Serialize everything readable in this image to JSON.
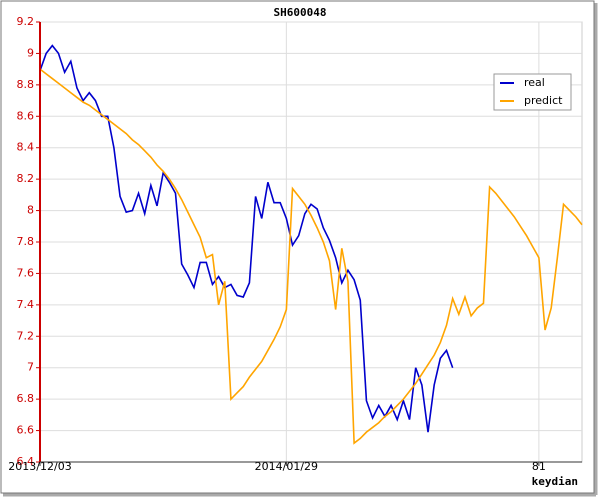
{
  "chart_data": {
    "type": "line",
    "title": "SH600048",
    "xlabel": "keydian",
    "x": [
      0,
      1,
      2,
      3,
      4,
      5,
      6,
      7,
      8,
      9,
      10,
      11,
      12,
      13,
      14,
      15,
      16,
      17,
      18,
      19,
      20,
      21,
      22,
      23,
      24,
      25,
      26,
      27,
      28,
      29,
      30,
      31,
      32,
      33,
      34,
      35,
      36,
      37,
      38,
      39,
      40,
      41,
      42,
      43,
      44,
      45,
      46,
      47,
      48,
      49,
      50,
      51,
      52,
      53,
      54,
      55,
      56,
      57,
      58,
      59,
      60,
      61,
      62,
      63,
      64,
      65,
      66,
      67,
      68,
      69,
      70,
      71,
      72,
      73,
      74,
      75,
      76,
      77,
      78,
      79,
      80,
      81,
      82,
      83,
      84,
      85,
      86,
      87,
      88
    ],
    "series": [
      {
        "name": "real",
        "color": "#0000cc",
        "values": [
          8.89,
          9.0,
          9.05,
          9.0,
          8.88,
          8.95,
          8.78,
          8.7,
          8.75,
          8.7,
          8.6,
          8.6,
          8.4,
          8.09,
          7.99,
          8.0,
          8.11,
          7.98,
          8.16,
          8.03,
          8.24,
          8.18,
          8.11,
          7.66,
          7.59,
          7.51,
          7.67,
          7.67,
          7.53,
          7.58,
          7.51,
          7.53,
          7.46,
          7.45,
          7.54,
          8.09,
          7.95,
          8.18,
          8.05,
          8.05,
          7.95,
          7.78,
          7.84,
          7.98,
          8.04,
          8.01,
          7.89,
          7.81,
          7.7,
          7.54,
          7.62,
          7.56,
          7.43,
          6.79,
          6.68,
          6.76,
          6.69,
          6.76,
          6.67,
          6.79,
          6.67,
          7.0,
          6.89,
          6.59,
          6.89,
          7.06,
          7.11,
          7.0,
          null,
          null,
          null,
          null,
          null,
          null,
          null,
          null,
          null,
          null,
          null,
          null,
          null,
          null,
          null,
          null,
          null,
          null,
          null,
          null,
          null
        ]
      },
      {
        "name": "predict",
        "color": "#ffa500",
        "values": [
          8.9,
          8.87,
          8.84,
          8.81,
          8.78,
          8.75,
          8.72,
          8.69,
          8.67,
          8.64,
          8.61,
          8.58,
          8.55,
          8.52,
          8.49,
          8.45,
          8.42,
          8.38,
          8.34,
          8.29,
          8.25,
          8.2,
          8.14,
          8.07,
          7.99,
          7.91,
          7.83,
          7.7,
          7.72,
          7.4,
          7.55,
          6.8,
          6.84,
          6.88,
          6.94,
          6.99,
          7.04,
          7.11,
          7.18,
          7.26,
          7.37,
          8.14,
          8.09,
          8.04,
          7.97,
          7.89,
          7.8,
          7.68,
          7.37,
          7.76,
          7.55,
          6.52,
          6.55,
          6.59,
          6.62,
          6.65,
          6.69,
          6.72,
          6.76,
          6.8,
          6.85,
          6.9,
          6.96,
          7.02,
          7.08,
          7.16,
          7.27,
          7.44,
          7.34,
          7.45,
          7.33,
          7.38,
          7.41,
          8.15,
          8.11,
          8.06,
          8.01,
          7.96,
          7.9,
          7.84,
          7.77,
          7.7,
          7.24,
          7.38,
          7.7,
          8.04,
          8.0,
          7.96,
          7.91
        ]
      }
    ],
    "xlim": [
      0,
      88
    ],
    "xticks": [
      {
        "value": 0,
        "label": "2013/12/03"
      },
      {
        "value": 40,
        "label": "2014/01/29"
      },
      81
    ],
    "ylim": [
      6.4,
      9.2
    ],
    "yticks": [
      6.4,
      6.6,
      6.8,
      7.0,
      7.2,
      7.4,
      7.6,
      7.8,
      8.0,
      8.2,
      8.4,
      8.6,
      8.8,
      9.0,
      9.2
    ],
    "grid": true,
    "legend": "upper right"
  }
}
